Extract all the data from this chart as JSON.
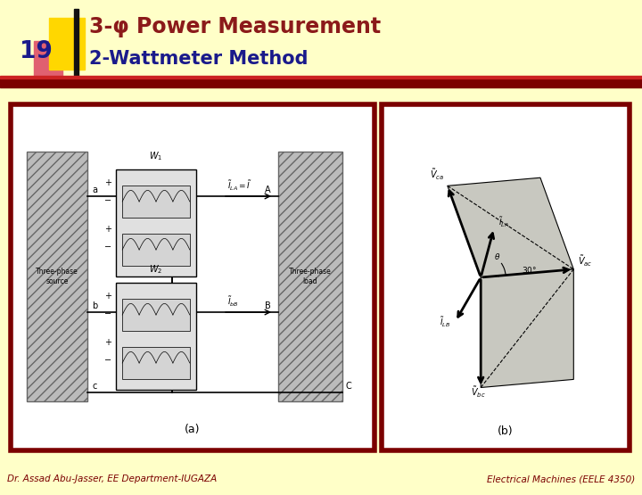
{
  "bg_color": "#FFFFC8",
  "title_line1": "3-φ Power Measurement",
  "title_line2": "2-Wattmeter Method",
  "slide_number": "19",
  "title_color": "#8B1A1A",
  "subtitle_color": "#1A1A8B",
  "number_color": "#1A1A8B",
  "separator_color": "#7B0000",
  "footer_left": "Dr. Assad Abu-Jasser, EE Department-IUGAZA",
  "footer_right": "Electrical Machines (EELE 4350)",
  "footer_color": "#7B0000",
  "box_border_color": "#7B0000",
  "yellow_sq_color": "#FFD700",
  "red_sq_color": "#E06070",
  "black_bar_color": "#111111"
}
